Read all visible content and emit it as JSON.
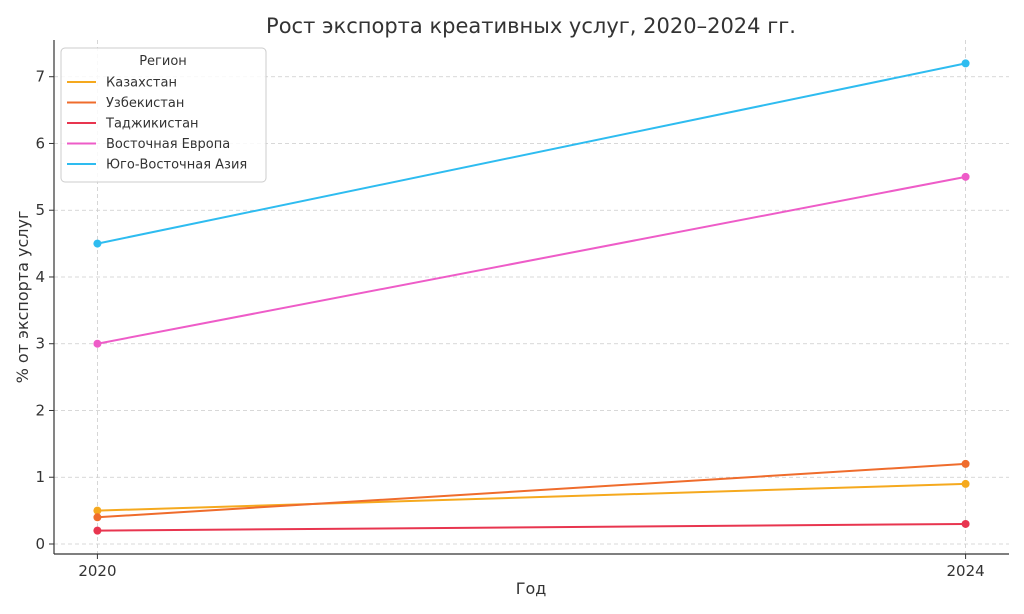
{
  "chart_data": {
    "type": "line",
    "title": "Рост экспорта креативных услуг, 2020–2024 гг.",
    "xlabel": "Год",
    "ylabel": "% от экспорта услуг",
    "x": [
      2020,
      2024
    ],
    "x_tick_labels": [
      "2020",
      "2024"
    ],
    "y_ticks": [
      "0",
      "1",
      "2",
      "3",
      "4",
      "5",
      "6",
      "7"
    ],
    "xlim": [
      2019.8,
      2024.2
    ],
    "ylim": [
      -0.15,
      7.55
    ],
    "grid": true,
    "legend": {
      "title": "Регион",
      "placement": "top-left"
    },
    "series": [
      {
        "name": "Казахстан",
        "color": "#f5a91e",
        "values": [
          0.5,
          0.9
        ]
      },
      {
        "name": "Узбекистан",
        "color": "#ef6c2c",
        "values": [
          0.4,
          1.2
        ]
      },
      {
        "name": "Таджикистан",
        "color": "#e8354f",
        "values": [
          0.2,
          0.3
        ]
      },
      {
        "name": "Восточная Европа",
        "color": "#ee5cc8",
        "values": [
          3.0,
          5.5
        ]
      },
      {
        "name": "Юго-Восточная Азия",
        "color": "#2ebcf0",
        "values": [
          4.5,
          7.2
        ]
      }
    ]
  }
}
